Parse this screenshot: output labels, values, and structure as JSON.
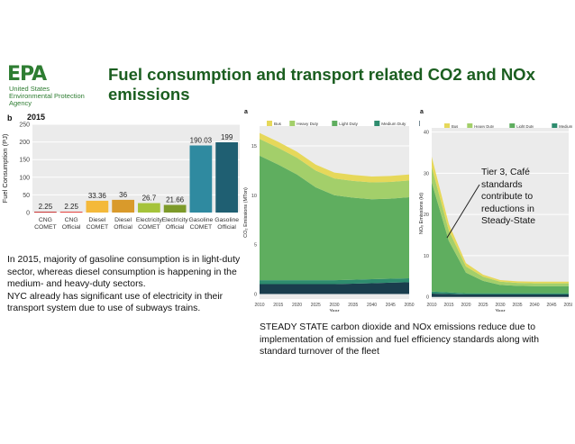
{
  "logo": {
    "mark": "EPA",
    "line1": "United States",
    "line2": "Environmental Protection",
    "line3": "Agency"
  },
  "title": "Fuel consumption and transport related CO2 and NOx emissions",
  "colors": {
    "title": "#1b5e20",
    "epa_green": "#2e7d32"
  },
  "chart_data": [
    {
      "type": "bar",
      "panel_label": "b",
      "title": "2015",
      "ylabel": "Fuel Consumption (PJ)",
      "ylim": [
        0,
        250
      ],
      "yticks": [
        0,
        50,
        100,
        150,
        200,
        250
      ],
      "categories": [
        "CNG\nCOMET",
        "CNG\nOfficial",
        "Diesel\nCOMET",
        "Diesel\nOfficial",
        "Electricity\nCOMET",
        "Electricity\nOfficial",
        "Gasoline\nCOMET",
        "Gasoline\nOfficial"
      ],
      "values": [
        2.25,
        2.25,
        33.36,
        36,
        26.7,
        21.66,
        190.03,
        199
      ],
      "value_labels": [
        "2.25",
        "2.25",
        "33.36",
        "36",
        "26.7",
        "21.66",
        "190.03",
        "199"
      ],
      "colors": [
        "#c62828",
        "#e53935",
        "#f4b93a",
        "#d99a2b",
        "#a5c33a",
        "#7d9a2a",
        "#2f8aa0",
        "#1f5f72"
      ]
    },
    {
      "type": "area",
      "panel_label": "a",
      "xlabel": "Year",
      "ylabel": "CO₂ Emissions (MTon)",
      "x": [
        2010,
        2015,
        2020,
        2025,
        2030,
        2035,
        2040,
        2045,
        2050
      ],
      "xticks": [
        2010,
        2015,
        2020,
        2025,
        2030,
        2035,
        2040,
        2045,
        2050
      ],
      "ylim": [
        -0.5,
        17
      ],
      "yticks": [
        0,
        5,
        10,
        15
      ],
      "legend": [
        "Bus",
        "Heavy Duty",
        "Light Duty",
        "Medium Duty",
        "Rail"
      ],
      "series": [
        {
          "name": "Rail",
          "values": [
            1.0,
            1.0,
            1.0,
            1.0,
            1.0,
            1.05,
            1.1,
            1.15,
            1.2
          ]
        },
        {
          "name": "Medium Duty",
          "values": [
            0.4,
            0.4,
            0.4,
            0.4,
            0.4,
            0.4,
            0.4,
            0.4,
            0.4
          ]
        },
        {
          "name": "Light Duty",
          "values": [
            12.6,
            11.7,
            10.7,
            9.4,
            8.6,
            8.3,
            8.1,
            8.1,
            8.2
          ]
        },
        {
          "name": "Heavy Duty",
          "values": [
            1.7,
            1.7,
            1.7,
            1.7,
            1.7,
            1.7,
            1.7,
            1.7,
            1.7
          ]
        },
        {
          "name": "Bus",
          "values": [
            0.6,
            0.6,
            0.6,
            0.6,
            0.6,
            0.6,
            0.6,
            0.6,
            0.6
          ]
        }
      ],
      "colors": [
        "#1a3d4d",
        "#2e8c6e",
        "#5fae5f",
        "#a3cf6a",
        "#e6d85a"
      ]
    },
    {
      "type": "area",
      "panel_label": "a",
      "xlabel": "Year",
      "ylabel": "NOₓ Emissions (kt)",
      "x": [
        2010,
        2015,
        2020,
        2025,
        2030,
        2035,
        2040,
        2045,
        2050
      ],
      "xticks": [
        2010,
        2015,
        2020,
        2025,
        2030,
        2035,
        2040,
        2045,
        2050
      ],
      "ylim": [
        -0.5,
        41
      ],
      "yticks": [
        0,
        10,
        20,
        30,
        40
      ],
      "legend": [
        "Bus",
        "Heavy Duty",
        "Light Duty",
        "Medium Duty",
        "Rail"
      ],
      "series": [
        {
          "name": "Rail",
          "values": [
            0.8,
            0.7,
            0.6,
            0.6,
            0.6,
            0.6,
            0.6,
            0.6,
            0.6
          ]
        },
        {
          "name": "Medium Duty",
          "values": [
            0.5,
            0.4,
            0.3,
            0.3,
            0.3,
            0.3,
            0.3,
            0.3,
            0.3
          ]
        },
        {
          "name": "Light Duty",
          "values": [
            26.5,
            12.5,
            5.0,
            3.0,
            2.0,
            1.8,
            1.7,
            1.7,
            1.7
          ]
        },
        {
          "name": "Heavy Duty",
          "values": [
            3.7,
            2.5,
            1.5,
            1.0,
            0.8,
            0.7,
            0.7,
            0.7,
            0.7
          ]
        },
        {
          "name": "Bus",
          "values": [
            2.5,
            1.6,
            0.8,
            0.5,
            0.4,
            0.4,
            0.4,
            0.4,
            0.4
          ]
        }
      ],
      "colors": [
        "#1a3d4d",
        "#2e8c6e",
        "#5fae5f",
        "#a3cf6a",
        "#e6d85a"
      ]
    }
  ],
  "captions": {
    "left": [
      "In 2015, majority of gasoline consumption is in light-duty sector, whereas diesel consumption is happening in the medium- and heavy-duty sectors.",
      "NYC already has significant use of electricity in their transport system due to use of subways trains."
    ],
    "right": "STEADY STATE carbon dioxide and NOx emissions reduce due to implementation of emission and fuel efficiency standards along with standard turnover of the fleet",
    "tier_note": "Tier 3, Café standards contribute to reductions in Steady-State"
  }
}
